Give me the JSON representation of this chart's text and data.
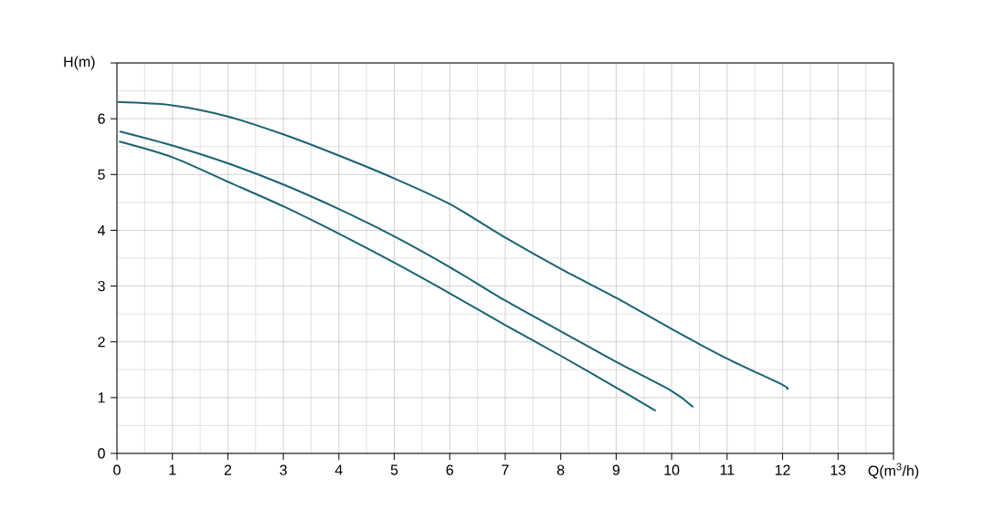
{
  "chart_data": {
    "type": "line",
    "xlabel": "Q(m$^{3}$/h)",
    "ylabel": "H(m)",
    "xlim": [
      0,
      14
    ],
    "ylim": [
      0,
      7
    ],
    "xticks": [
      0,
      1,
      2,
      3,
      4,
      5,
      6,
      7,
      8,
      9,
      10,
      11,
      12,
      13,
      {
        "value": 14,
        "label": null
      }
    ],
    "yticks": [
      0,
      1,
      2,
      3,
      4,
      5,
      6,
      {
        "value": 7,
        "label": null
      }
    ],
    "grid": true,
    "marker": "none",
    "line_style": "solid",
    "series": [
      {
        "color": "#1a6373",
        "x": [
          0.02,
          1,
          2,
          3,
          4,
          5,
          6,
          7,
          8,
          9,
          10,
          11,
          12,
          12.08
        ],
        "values": [
          6.3,
          6.24,
          6.04,
          5.72,
          5.34,
          4.93,
          4.47,
          3.87,
          3.31,
          2.79,
          2.23,
          1.7,
          1.23,
          1.16
        ]
      },
      {
        "color": "#1a6373",
        "x": [
          0.06,
          1,
          2,
          3,
          4,
          5,
          6,
          7,
          8,
          9,
          10,
          10.38
        ],
        "values": [
          5.77,
          5.52,
          5.2,
          4.82,
          4.38,
          3.89,
          3.34,
          2.74,
          2.19,
          1.64,
          1.12,
          0.84
        ]
      },
      {
        "color": "#1a6373",
        "x": [
          0.05,
          1,
          2,
          3,
          4,
          5,
          6,
          7,
          8,
          9,
          9.7
        ],
        "values": [
          5.59,
          5.31,
          4.87,
          4.43,
          3.94,
          3.42,
          2.87,
          2.3,
          1.75,
          1.18,
          0.77
        ]
      }
    ]
  }
}
